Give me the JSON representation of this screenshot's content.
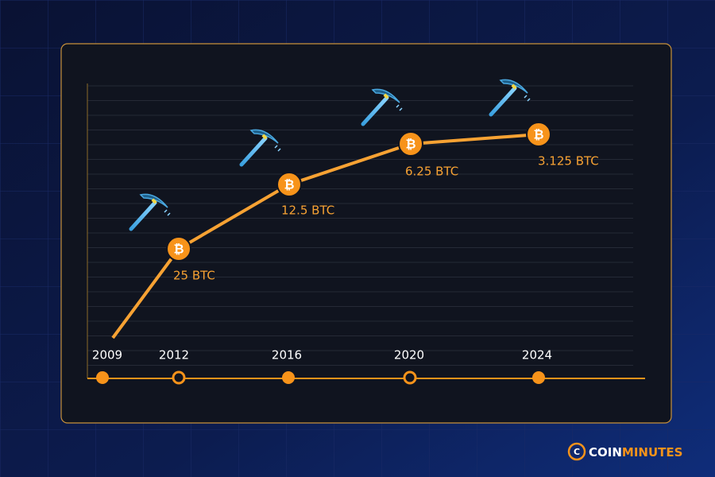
{
  "timeline": {
    "years": [
      "2009",
      "2012",
      "2016",
      "2020",
      "2024"
    ]
  },
  "halvings": [
    {
      "label": "25 BTC"
    },
    {
      "label": "12.5 BTC"
    },
    {
      "label": "6.25 BTC"
    },
    {
      "label": "3.125 BTC"
    }
  ],
  "logo": {
    "first": "COIN",
    "second": "MINUTES"
  }
}
